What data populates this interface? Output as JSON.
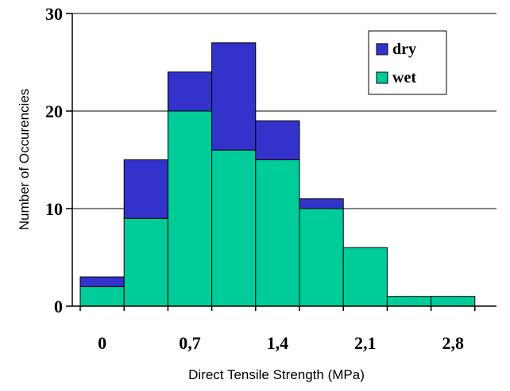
{
  "chart_data": {
    "type": "bar",
    "stacked": true,
    "xlabel": "Direct Tensile Strength (MPa)",
    "ylabel": "Number of Occurencies",
    "ylim": [
      0,
      30
    ],
    "yticks": [
      "0",
      "10",
      "20",
      "30"
    ],
    "xtick_labels": [
      "0",
      "0,7",
      "1,4",
      "2,1",
      "2,8"
    ],
    "xtick_values": [
      0,
      0.7,
      1.4,
      2.1,
      2.8
    ],
    "bin_width": 0.35,
    "bin_centers": [
      0,
      0.35,
      0.7,
      1.05,
      1.4,
      1.75,
      2.1,
      2.45,
      2.8
    ],
    "series": [
      {
        "name": "wet",
        "color": "#00cc99",
        "values": [
          2,
          9,
          20,
          16,
          15,
          10,
          6,
          1,
          1
        ]
      },
      {
        "name": "dry",
        "color": "#3333cc",
        "values": [
          1,
          6,
          4,
          11,
          4,
          1,
          0,
          0,
          0
        ]
      }
    ],
    "grid": true,
    "legend_position": "top-right"
  }
}
